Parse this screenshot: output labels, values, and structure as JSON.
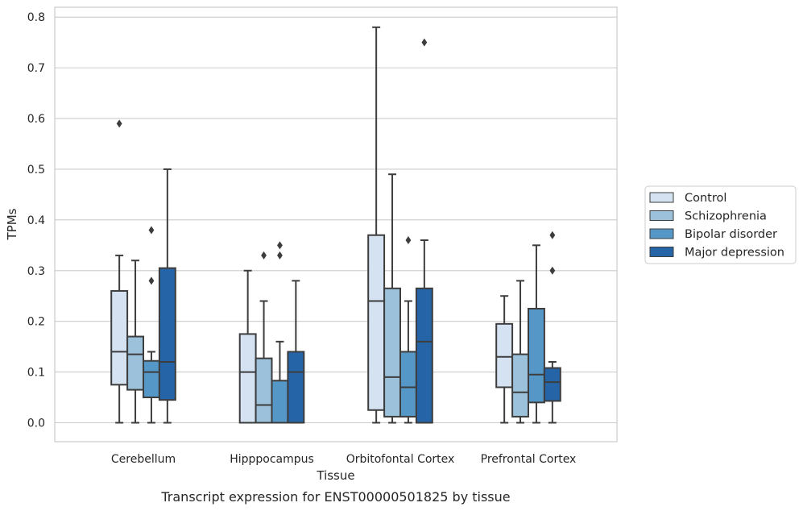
{
  "chart_data": {
    "type": "box",
    "xlabel": "Tissue",
    "ylabel": "TPMs",
    "caption": "Transcript expression for ENST00000501825 by tissue",
    "ylim": [
      -0.04,
      0.82
    ],
    "yticks": [
      0.0,
      0.1,
      0.2,
      0.3,
      0.4,
      0.5,
      0.6,
      0.7,
      0.8
    ],
    "ytick_labels": [
      "0.0",
      "0.1",
      "0.2",
      "0.3",
      "0.4",
      "0.5",
      "0.6",
      "0.7",
      "0.8"
    ],
    "grid": "horizontal",
    "legend_position": "right",
    "categories": [
      "Cerebellum",
      "Hipppocampus",
      "Orbitofontal Cortex",
      "Prefrontal Cortex"
    ],
    "series": [
      {
        "name": "Control",
        "color": "#d4e2f1",
        "boxes": [
          {
            "whislo": 0.0,
            "q1": 0.075,
            "med": 0.14,
            "q3": 0.26,
            "whishi": 0.33,
            "fliers": [
              0.59
            ]
          },
          {
            "whislo": 0.0,
            "q1": 0.0,
            "med": 0.1,
            "q3": 0.175,
            "whishi": 0.3,
            "fliers": []
          },
          {
            "whislo": 0.0,
            "q1": 0.025,
            "med": 0.24,
            "q3": 0.37,
            "whishi": 0.78,
            "fliers": []
          },
          {
            "whislo": 0.0,
            "q1": 0.07,
            "med": 0.13,
            "q3": 0.195,
            "whishi": 0.25,
            "fliers": []
          }
        ]
      },
      {
        "name": "Schizophrenia",
        "color": "#9bc2da",
        "boxes": [
          {
            "whislo": 0.0,
            "q1": 0.065,
            "med": 0.135,
            "q3": 0.17,
            "whishi": 0.32,
            "fliers": []
          },
          {
            "whislo": 0.0,
            "q1": 0.0,
            "med": 0.035,
            "q3": 0.127,
            "whishi": 0.24,
            "fliers": [
              0.33
            ]
          },
          {
            "whislo": 0.0,
            "q1": 0.012,
            "med": 0.09,
            "q3": 0.265,
            "whishi": 0.49,
            "fliers": []
          },
          {
            "whislo": 0.0,
            "q1": 0.012,
            "med": 0.06,
            "q3": 0.135,
            "whishi": 0.28,
            "fliers": []
          }
        ]
      },
      {
        "name": "Bipolar disorder",
        "color": "#5597c6",
        "boxes": [
          {
            "whislo": 0.0,
            "q1": 0.05,
            "med": 0.1,
            "q3": 0.122,
            "whishi": 0.14,
            "fliers": [
              0.28,
              0.38
            ]
          },
          {
            "whislo": 0.0,
            "q1": 0.0,
            "med": 0.0,
            "q3": 0.083,
            "whishi": 0.16,
            "fliers": [
              0.33,
              0.35
            ]
          },
          {
            "whislo": 0.0,
            "q1": 0.012,
            "med": 0.07,
            "q3": 0.14,
            "whishi": 0.24,
            "fliers": [
              0.36
            ]
          },
          {
            "whislo": 0.0,
            "q1": 0.04,
            "med": 0.095,
            "q3": 0.225,
            "whishi": 0.35,
            "fliers": []
          }
        ]
      },
      {
        "name": "Major depression",
        "color": "#2565a7",
        "boxes": [
          {
            "whislo": 0.0,
            "q1": 0.045,
            "med": 0.12,
            "q3": 0.305,
            "whishi": 0.5,
            "fliers": []
          },
          {
            "whislo": 0.0,
            "q1": 0.0,
            "med": 0.1,
            "q3": 0.14,
            "whishi": 0.28,
            "fliers": []
          },
          {
            "whislo": 0.0,
            "q1": 0.0,
            "med": 0.16,
            "q3": 0.265,
            "whishi": 0.36,
            "fliers": [
              0.75
            ]
          },
          {
            "whislo": 0.0,
            "q1": 0.043,
            "med": 0.08,
            "q3": 0.108,
            "whishi": 0.12,
            "fliers": [
              0.3,
              0.37
            ]
          }
        ]
      }
    ]
  }
}
